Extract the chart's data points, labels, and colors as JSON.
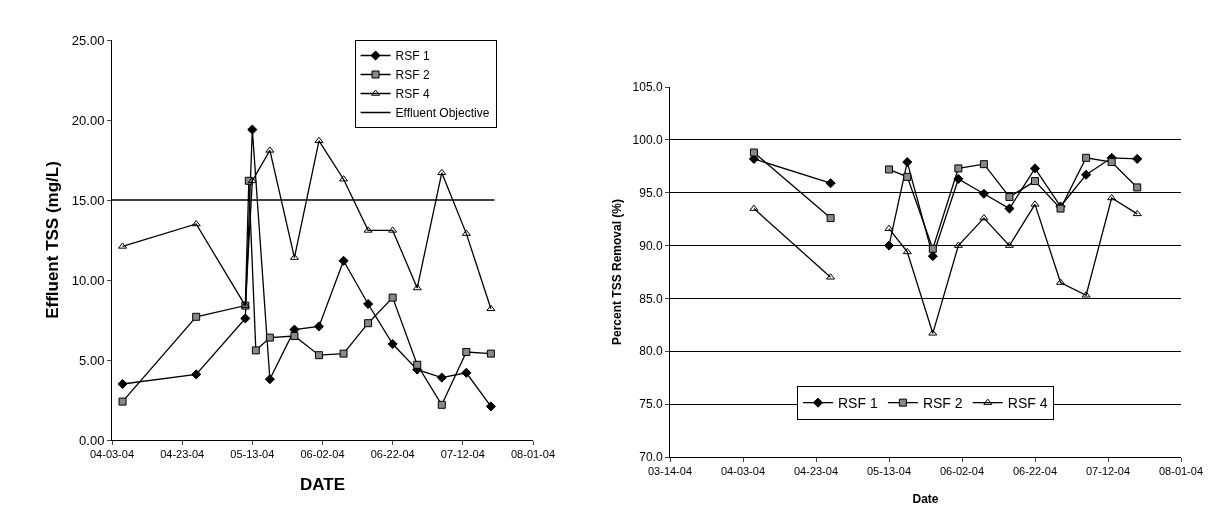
{
  "chart_data": [
    {
      "type": "line",
      "xlabel": "DATE",
      "ylabel": "Effluent TSS (mg/L)",
      "x": [
        "2004-04-06",
        "2004-04-27",
        "2004-05-11",
        "2004-05-13",
        "2004-05-18",
        "2004-05-25",
        "2004-06-01",
        "2004-06-08",
        "2004-06-15",
        "2004-06-22",
        "2004-06-29",
        "2004-07-06",
        "2004-07-13",
        "2004-07-20"
      ],
      "series": [
        {
          "name": "RSF 1",
          "color": "#000000",
          "marker": "diamond",
          "values": [
            3.5,
            4.1,
            7.6,
            19.4,
            3.8,
            6.9,
            7.1,
            11.2,
            8.5,
            6.0,
            4.4,
            3.9,
            4.2,
            2.1
          ]
        },
        {
          "name": "RSF 2",
          "color": "#000000",
          "marker": "square",
          "x": [
            "2004-04-06",
            "2004-04-27",
            "2004-05-11",
            "2004-05-12",
            "2004-05-14",
            "2004-05-18",
            "2004-05-25",
            "2004-06-01",
            "2004-06-08",
            "2004-06-15",
            "2004-06-22",
            "2004-06-29",
            "2004-07-06",
            "2004-07-13",
            "2004-07-20"
          ],
          "values": [
            2.4,
            7.7,
            8.4,
            16.2,
            5.6,
            6.4,
            6.5,
            5.3,
            5.4,
            7.3,
            8.9,
            4.7,
            2.2,
            5.5,
            5.4
          ]
        },
        {
          "name": "RSF 4",
          "color": "#000000",
          "marker": "triangle",
          "values": [
            12.1,
            13.5,
            8.4,
            16.2,
            18.1,
            11.4,
            18.7,
            16.3,
            13.1,
            13.1,
            9.5,
            16.7,
            12.9,
            8.2
          ]
        },
        {
          "name": "Effluent Objective",
          "color": "#000000",
          "marker": "none",
          "x": [
            "2004-04-03",
            "2004-07-21"
          ],
          "values": [
            15,
            15
          ]
        }
      ],
      "xlim": [
        "2004-04-03",
        "2004-08-01"
      ],
      "xticks": [
        {
          "value": "2004-04-03",
          "label": "04-03-04"
        },
        {
          "value": "2004-04-23",
          "label": "04-23-04"
        },
        {
          "value": "2004-05-13",
          "label": "05-13-04"
        },
        {
          "value": "2004-06-02",
          "label": "06-02-04"
        },
        {
          "value": "2004-06-22",
          "label": "06-22-04"
        },
        {
          "value": "2004-07-12",
          "label": "07-12-04"
        },
        {
          "value": "2004-08-01",
          "label": "08-01-04"
        }
      ],
      "ylim": [
        0,
        25
      ],
      "yticks": [
        {
          "value": 0,
          "label": "0.00"
        },
        {
          "value": 5,
          "label": "5.00"
        },
        {
          "value": 10,
          "label": "10.00"
        },
        {
          "value": 15,
          "label": "15.00"
        },
        {
          "value": 20,
          "label": "20.00"
        },
        {
          "value": 25,
          "label": "25.00"
        }
      ],
      "grid": false,
      "legend": "top right"
    },
    {
      "type": "line",
      "xlabel": "Date",
      "ylabel": "Percent TSS Removal (%)",
      "x": [
        "2004-04-06",
        "2004-04-27",
        "2004-05-11",
        "2004-05-13",
        "2004-05-18",
        "2004-05-25",
        "2004-06-01",
        "2004-06-08",
        "2004-06-15",
        "2004-06-22",
        "2004-06-29",
        "2004-07-06",
        "2004-07-13",
        "2004-07-20"
      ],
      "series": [
        {
          "name": "RSF 1",
          "color": "#000000",
          "marker": "diamond",
          "values": [
            98.2,
            95.9,
            null,
            90.0,
            97.9,
            89.0,
            96.3,
            94.9,
            93.5,
            97.3,
            93.7,
            96.7,
            98.3,
            98.2
          ]
        },
        {
          "name": "RSF 2",
          "color": "#000000",
          "marker": "square",
          "values": [
            98.8,
            92.6,
            null,
            97.2,
            96.5,
            89.7,
            97.3,
            97.7,
            94.6,
            96.1,
            93.5,
            98.3,
            97.9,
            95.5
          ]
        },
        {
          "name": "RSF 4",
          "color": "#000000",
          "marker": "triangle",
          "values": [
            93.5,
            87.0,
            null,
            91.6,
            89.4,
            81.7,
            90.0,
            92.6,
            90.0,
            93.9,
            86.5,
            85.3,
            94.5,
            93.0
          ]
        }
      ],
      "xlim": [
        "2004-03-14",
        "2004-08-01"
      ],
      "xticks": [
        {
          "value": "2004-03-14",
          "label": "03-14-04"
        },
        {
          "value": "2004-04-03",
          "label": "04-03-04"
        },
        {
          "value": "2004-04-23",
          "label": "04-23-04"
        },
        {
          "value": "2004-05-13",
          "label": "05-13-04"
        },
        {
          "value": "2004-06-02",
          "label": "06-02-04"
        },
        {
          "value": "2004-06-22",
          "label": "06-22-04"
        },
        {
          "value": "2004-07-12",
          "label": "07-12-04"
        },
        {
          "value": "2004-08-01",
          "label": "08-01-04"
        }
      ],
      "ylim": [
        70,
        105
      ],
      "yticks": [
        {
          "value": 70,
          "label": "70.0"
        },
        {
          "value": 75,
          "label": "75.0"
        },
        {
          "value": 80,
          "label": "80.0"
        },
        {
          "value": 85,
          "label": "85.0"
        },
        {
          "value": 90,
          "label": "90.0"
        },
        {
          "value": 95,
          "label": "95.0"
        },
        {
          "value": 100,
          "label": "100.0"
        },
        {
          "value": 105,
          "label": "105.0"
        }
      ],
      "grid": "y",
      "legend": "bottom"
    }
  ]
}
